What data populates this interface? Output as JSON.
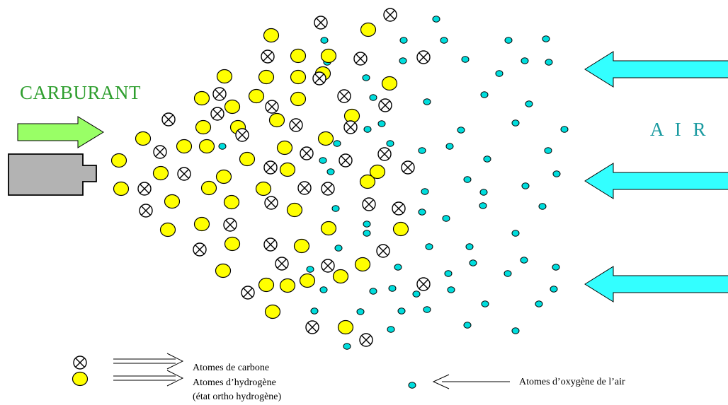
{
  "labels": {
    "fuel": "CARBURANT",
    "air": "A I R"
  },
  "legend": {
    "carbon": "Atomes de carbone",
    "hydrogen": "Atomes d’hydrogène",
    "hydrogen_note": "(état ortho hydrogène)",
    "oxygen": "Atomes d’oxygène de l’air"
  },
  "colors": {
    "fuel_arrow": "#99ff66",
    "fuel_label": "#2e9e2e",
    "air_arrow": "#33ffff",
    "air_label": "#1a9aa0",
    "hydrogen_atom": "#ffff00",
    "oxygen_atom": "#00dddd",
    "carbon_atom": "#ffffff",
    "injector": "#b3b3b3"
  },
  "icons": {
    "carbon": "circle-with-x",
    "hydrogen": "yellow-circle",
    "oxygen": "cyan-dot",
    "fuel_arrow": "arrow-right",
    "air_arrow": "arrow-left",
    "injector": "injector-nozzle"
  }
}
